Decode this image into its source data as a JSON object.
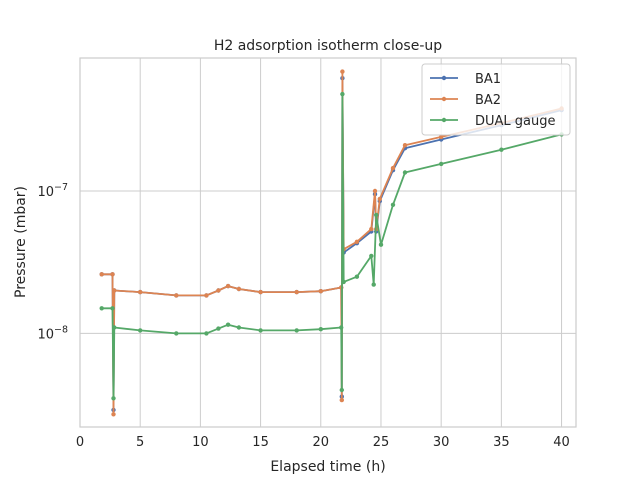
{
  "chart_data": {
    "type": "line",
    "title": "H2 adsorption isotherm close-up",
    "xlabel": "Elapsed time (h)",
    "ylabel": "Pressure (mbar)",
    "xlim": [
      0,
      41.2
    ],
    "ylim": [
      2.2e-09,
      8.6e-07
    ],
    "yscale": "log",
    "xticks": [
      0,
      5,
      10,
      15,
      20,
      25,
      30,
      35,
      40
    ],
    "yticks": [
      {
        "value": 1e-07,
        "base": "10",
        "exp": "−7"
      },
      {
        "value": 1e-08,
        "base": "10",
        "exp": "−8"
      }
    ],
    "grid": true,
    "legend": {
      "position": "top-right",
      "entries": [
        "BA1",
        "BA2",
        "DUAL gauge"
      ]
    },
    "series": [
      {
        "name": "BA1",
        "color": "#4c72b0",
        "points": [
          [
            1.8,
            2.6e-08
          ],
          [
            2.7,
            2.6e-08
          ],
          [
            2.78,
            2.9e-09
          ],
          [
            2.85,
            2e-08
          ],
          [
            5,
            1.95e-08
          ],
          [
            8,
            1.85e-08
          ],
          [
            10.5,
            1.85e-08
          ],
          [
            11.5,
            2e-08
          ],
          [
            12.3,
            2.15e-08
          ],
          [
            13.2,
            2.05e-08
          ],
          [
            15,
            1.95e-08
          ],
          [
            18,
            1.95e-08
          ],
          [
            20,
            1.98e-08
          ],
          [
            21.7,
            2.1e-08
          ],
          [
            21.75,
            3.6e-09
          ],
          [
            21.8,
            6.2e-07
          ],
          [
            21.9,
            3.7e-08
          ],
          [
            23,
            4.3e-08
          ],
          [
            24.2,
            5.2e-08
          ],
          [
            24.5,
            9.5e-08
          ],
          [
            24.6,
            5.2e-08
          ],
          [
            24.9,
            8.5e-08
          ],
          [
            26,
            1.4e-07
          ],
          [
            27,
            2e-07
          ],
          [
            30,
            2.3e-07
          ],
          [
            35,
            2.9e-07
          ],
          [
            40,
            3.7e-07
          ]
        ]
      },
      {
        "name": "BA2",
        "color": "#dd8452",
        "points": [
          [
            1.8,
            2.6e-08
          ],
          [
            2.7,
            2.6e-08
          ],
          [
            2.78,
            2.7e-09
          ],
          [
            2.85,
            2e-08
          ],
          [
            5,
            1.95e-08
          ],
          [
            8,
            1.85e-08
          ],
          [
            10.5,
            1.85e-08
          ],
          [
            11.5,
            2e-08
          ],
          [
            12.3,
            2.15e-08
          ],
          [
            13.2,
            2.05e-08
          ],
          [
            15,
            1.95e-08
          ],
          [
            18,
            1.95e-08
          ],
          [
            20,
            1.98e-08
          ],
          [
            21.7,
            2.1e-08
          ],
          [
            21.75,
            3.4e-09
          ],
          [
            21.8,
            6.9e-07
          ],
          [
            21.9,
            3.9e-08
          ],
          [
            23,
            4.4e-08
          ],
          [
            24.2,
            5.4e-08
          ],
          [
            24.5,
            1e-07
          ],
          [
            24.6,
            5.4e-08
          ],
          [
            24.9,
            8.8e-08
          ],
          [
            26,
            1.45e-07
          ],
          [
            27,
            2.1e-07
          ],
          [
            30,
            2.4e-07
          ],
          [
            35,
            3e-07
          ],
          [
            40,
            3.8e-07
          ]
        ]
      },
      {
        "name": "DUAL gauge",
        "color": "#55a868",
        "points": [
          [
            1.8,
            1.5e-08
          ],
          [
            2.7,
            1.5e-08
          ],
          [
            2.78,
            3.5e-09
          ],
          [
            2.85,
            1.1e-08
          ],
          [
            5,
            1.05e-08
          ],
          [
            8,
            1e-08
          ],
          [
            10.5,
            1e-08
          ],
          [
            11.5,
            1.08e-08
          ],
          [
            12.3,
            1.15e-08
          ],
          [
            13.2,
            1.1e-08
          ],
          [
            15,
            1.05e-08
          ],
          [
            18,
            1.05e-08
          ],
          [
            20,
            1.07e-08
          ],
          [
            21.7,
            1.1e-08
          ],
          [
            21.75,
            4e-09
          ],
          [
            21.8,
            4.8e-07
          ],
          [
            21.9,
            2.3e-08
          ],
          [
            23,
            2.5e-08
          ],
          [
            24.2,
            3.5e-08
          ],
          [
            24.4,
            2.2e-08
          ],
          [
            24.6,
            6.8e-08
          ],
          [
            25,
            4.2e-08
          ],
          [
            26,
            8e-08
          ],
          [
            27,
            1.35e-07
          ],
          [
            30,
            1.55e-07
          ],
          [
            35,
            1.95e-07
          ],
          [
            40,
            2.5e-07
          ]
        ]
      }
    ]
  }
}
